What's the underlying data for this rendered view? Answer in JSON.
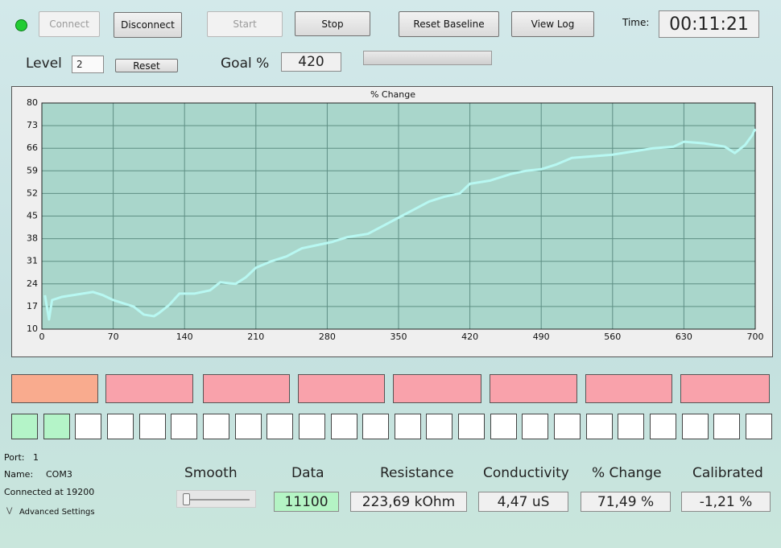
{
  "toolbar": {
    "connect": "Connect",
    "disconnect": "Disconnect",
    "start": "Start",
    "stop": "Stop",
    "reset_baseline": "Reset Baseline",
    "view_log": "View Log",
    "time_label": "Time:",
    "time": "00:11:21"
  },
  "level": {
    "label": "Level",
    "value": "2",
    "reset": "Reset"
  },
  "goal": {
    "label": "Goal %",
    "value": "420"
  },
  "chart_data": {
    "type": "line",
    "title": "% Change",
    "x": [
      3,
      7,
      10,
      20,
      40,
      50,
      60,
      70,
      80,
      90,
      100,
      110,
      115,
      125,
      135,
      150,
      165,
      175,
      190,
      200,
      210,
      225,
      240,
      255,
      270,
      285,
      300,
      320,
      335,
      350,
      365,
      380,
      395,
      410,
      420,
      440,
      460,
      475,
      490,
      505,
      520,
      540,
      560,
      580,
      600,
      620,
      630,
      650,
      670,
      680,
      690,
      697,
      700
    ],
    "series": [
      {
        "color": "#b8f8f2",
        "values": [
          20.5,
          13,
          19,
          20,
          21,
          21.5,
          20.5,
          19,
          18,
          17,
          14.5,
          14,
          15,
          17.5,
          21,
          21,
          22,
          24.5,
          24,
          26,
          29,
          31,
          32.5,
          35,
          36,
          37,
          38.5,
          39.5,
          42,
          44.5,
          47,
          49.5,
          51,
          52,
          55,
          56,
          58,
          59,
          59.5,
          61,
          63,
          63.5,
          64,
          65,
          66,
          66.5,
          68,
          67.5,
          66.5,
          64.5,
          67,
          70,
          72
        ]
      }
    ],
    "xlim": [
      0,
      700
    ],
    "ylim": [
      10,
      80
    ],
    "xticks": [
      0,
      70,
      140,
      210,
      280,
      350,
      420,
      490,
      560,
      630,
      700
    ],
    "yticks": [
      10,
      17,
      24,
      31,
      38,
      45,
      52,
      59,
      66,
      73,
      80
    ],
    "grid": true
  },
  "status": {
    "port_label": "Port:",
    "port": "1",
    "name_label": "Name:",
    "name": "COM3",
    "connected": "Connected at 19200",
    "advanced": "Advanced Settings"
  },
  "readouts": {
    "smooth_label": "Smooth",
    "data_label": "Data",
    "data": "11100",
    "resistance_label": "Resistance",
    "resistance": "223,69 kOhm",
    "conductivity_label": "Conductivity",
    "conductivity": "4,47 uS",
    "change_label": "% Change",
    "change": "71,49 %",
    "calibrated_label": "Calibrated",
    "calibrated": "-1,21 %"
  }
}
